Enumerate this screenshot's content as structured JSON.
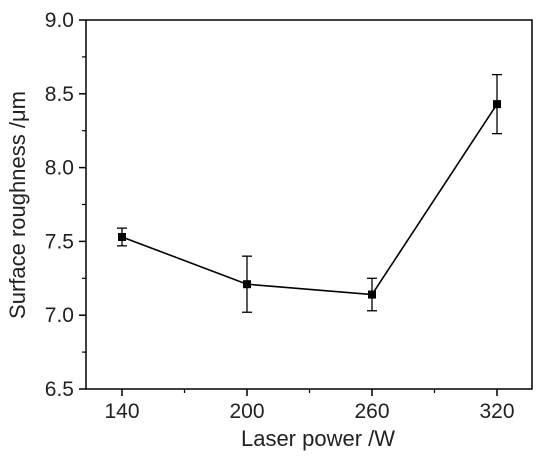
{
  "chart_data": {
    "type": "line",
    "title": "",
    "xlabel": "Laser power /W",
    "ylabel": "Surface roughness /μm",
    "x": [
      140,
      200,
      260,
      320
    ],
    "x_tick_labels": [
      "140",
      "200",
      "260",
      "320"
    ],
    "y_tick_labels": [
      "6.5",
      "7.0",
      "7.5",
      "8.0",
      "8.5",
      "9.0"
    ],
    "ylim": [
      6.5,
      9.0
    ],
    "series": [
      {
        "values": [
          7.53,
          7.21,
          7.14,
          8.43
        ],
        "error": [
          0.06,
          0.19,
          0.11,
          0.2
        ],
        "marker": "square",
        "color": "#000000"
      }
    ],
    "grid": false,
    "legend": "none"
  }
}
